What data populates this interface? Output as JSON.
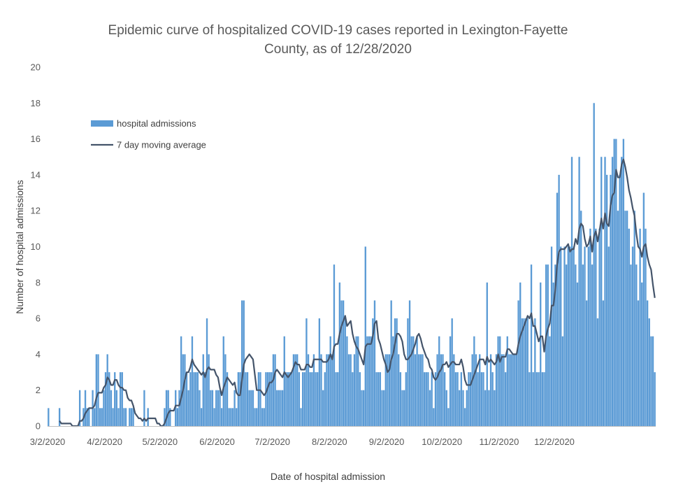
{
  "chart_data": {
    "type": "bar",
    "title": "Epidemic curve of hospitalized COVID-19 cases reported in Lexington-Fayette County, as of 12/28/2020",
    "title_lines": [
      "Epidemic curve of hospitalized COVID-19 cases reported in Lexington-Fayette",
      "County, as of 12/28/2020"
    ],
    "xlabel": "Date of hospital admission",
    "ylabel": "Number of hospital admissions",
    "ylim": [
      0,
      20
    ],
    "y_ticks": [
      0,
      2,
      4,
      6,
      8,
      10,
      12,
      14,
      16,
      18,
      20
    ],
    "x_start": "3/2/2020",
    "x_end": "12/28/2020",
    "x_tick_labels": [
      "3/2/2020",
      "4/2/2020",
      "5/2/2020",
      "6/2/2020",
      "7/2/2020",
      "8/2/2020",
      "9/2/2020",
      "10/2/2020",
      "11/2/2020",
      "12/2/2020"
    ],
    "x_tick_day_index": [
      0,
      31,
      61,
      92,
      122,
      153,
      184,
      214,
      245,
      275
    ],
    "grid": false,
    "legend_position": "top-left",
    "series": [
      {
        "name": "hospital admissions",
        "kind": "bar",
        "color": "#5B9BD5",
        "values": [
          1,
          0,
          0,
          0,
          0,
          0,
          1,
          0,
          0,
          0,
          0,
          0,
          0,
          0,
          0,
          0,
          0,
          2,
          0,
          1,
          2,
          1,
          1,
          0,
          2,
          1,
          4,
          4,
          1,
          1,
          2,
          3,
          4,
          3,
          2,
          1,
          3,
          2,
          1,
          3,
          3,
          1,
          1,
          0,
          1,
          1,
          1,
          0,
          0,
          0,
          0,
          0,
          2,
          0,
          1,
          0,
          0,
          0,
          0,
          0,
          0,
          0,
          0,
          1,
          2,
          2,
          1,
          0,
          0,
          2,
          1,
          2,
          5,
          4,
          4,
          3,
          2,
          3,
          5,
          3,
          3,
          3,
          2,
          1,
          4,
          3,
          6,
          4,
          2,
          2,
          1,
          2,
          2,
          2,
          1,
          5,
          4,
          3,
          1,
          1,
          1,
          2,
          1,
          3,
          3,
          7,
          7,
          3,
          3,
          2,
          2,
          2,
          1,
          1,
          3,
          3,
          1,
          1,
          3,
          3,
          3,
          3,
          4,
          4,
          2,
          2,
          2,
          2,
          5,
          3,
          3,
          3,
          3,
          4,
          4,
          4,
          3,
          1,
          3,
          3,
          6,
          4,
          3,
          3,
          4,
          3,
          3,
          6,
          4,
          2,
          3,
          4,
          4,
          5,
          4,
          9,
          3,
          3,
          8,
          7,
          7,
          6,
          5,
          4,
          4,
          3,
          4,
          5,
          5,
          3,
          2,
          2,
          10,
          5,
          5,
          5,
          6,
          7,
          3,
          3,
          3,
          2,
          2,
          4,
          4,
          4,
          7,
          5,
          6,
          6,
          4,
          3,
          2,
          2,
          3,
          6,
          7,
          5,
          5,
          4,
          5,
          4,
          4,
          4,
          3,
          3,
          3,
          2,
          3,
          1,
          3,
          4,
          5,
          4,
          4,
          3,
          2,
          1,
          5,
          6,
          4,
          3,
          3,
          2,
          3,
          2,
          1,
          2,
          3,
          3,
          4,
          5,
          4,
          3,
          4,
          3,
          3,
          2,
          8,
          2,
          4,
          3,
          2,
          4,
          5,
          5,
          4,
          4,
          3,
          5,
          4,
          4,
          4,
          4,
          4,
          7,
          8,
          6,
          6,
          6,
          6,
          3,
          9,
          3,
          6,
          3,
          3,
          8,
          3,
          3,
          9,
          9,
          5,
          10,
          8,
          9,
          13,
          14,
          10,
          5,
          10,
          9,
          10,
          10,
          15,
          10,
          9,
          8,
          15,
          12,
          9,
          10,
          7,
          10,
          11,
          9,
          18,
          11,
          6,
          11,
          15,
          7,
          15,
          14,
          10,
          14,
          15,
          16,
          16,
          12,
          14,
          15,
          16,
          12,
          12,
          11,
          9,
          10,
          12,
          9,
          7,
          11,
          8,
          13,
          11,
          7,
          6,
          5,
          5,
          3
        ]
      },
      {
        "name": "7 day moving average",
        "kind": "line",
        "color": "#44546A"
      }
    ]
  }
}
